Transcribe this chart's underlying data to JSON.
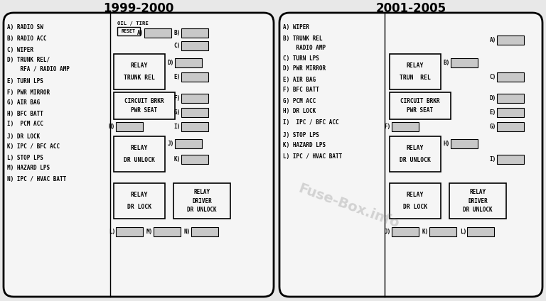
{
  "bg_color": "#e8e8e8",
  "panel_bg": "#f5f5f5",
  "fuse_fill": "#c8c8c8",
  "relay_fill": "#f5f5f5",
  "border_color": "#000000",
  "left_title": "1999-2000",
  "right_title": "2001-2005",
  "left_labels": [
    "A) RADIO SW",
    "B) RADIO ACC",
    "C) WIPER",
    "D) TRUNK REL/",
    "    RFA / RADIO AMP",
    "E) TURN LPS",
    "F) PWR MIRROR",
    "G) AIR BAG",
    "H) BFC BATT",
    "I)  PCM ACC",
    "J) DR LOCK",
    "K) IPC / BFC ACC",
    "L) STOP LPS",
    "M) HAZARD LPS",
    "N) IPC / HVAC BATT"
  ],
  "right_labels": [
    "A) WIPER",
    "B) TRUNK REL",
    "    RADIO AMP",
    "C) TURN LPS",
    "D) PWR MIRROR",
    "E) AIR BAG",
    "F) BFC BATT",
    "G) PCM ACC",
    "H) DR LOCK",
    "I)  IPC / BFC ACC",
    "J) STOP LPS",
    "K) HAZARD LPS",
    "L) IPC / HVAC BATT"
  ]
}
